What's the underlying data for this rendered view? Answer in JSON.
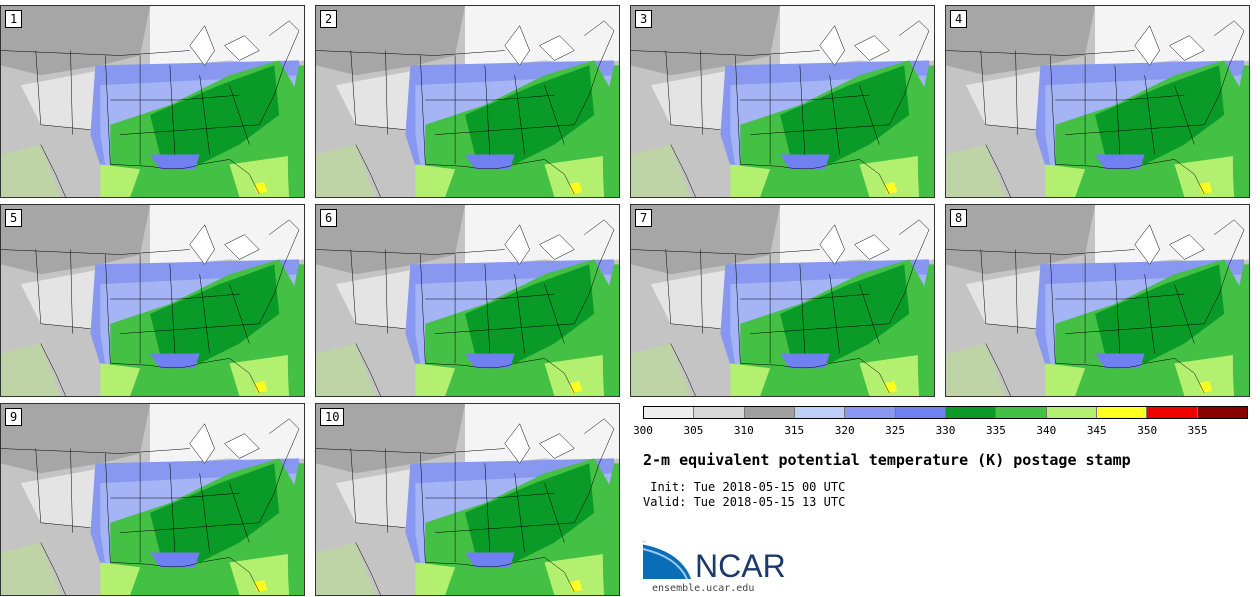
{
  "panels": [
    {
      "label": "1"
    },
    {
      "label": "2"
    },
    {
      "label": "3"
    },
    {
      "label": "4"
    },
    {
      "label": "5"
    },
    {
      "label": "6"
    },
    {
      "label": "7"
    },
    {
      "label": "8"
    },
    {
      "label": "9"
    },
    {
      "label": "10"
    }
  ],
  "colorbar": {
    "colors": [
      "#eeeeee",
      "#d8d8d8",
      "#a0a0a0",
      "#c0cff8",
      "#8898f0",
      "#7080f0",
      "#0a9a28",
      "#44c044",
      "#b4f070",
      "#ffff20",
      "#ee0000",
      "#880000"
    ],
    "ticks": [
      "300",
      "305",
      "310",
      "315",
      "320",
      "325",
      "330",
      "335",
      "340",
      "345",
      "350",
      "355"
    ]
  },
  "title": "2-m equivalent potential temperature (K) postage stamp",
  "init": " Init: Tue 2018-05-15 00 UTC",
  "valid": "Valid: Tue 2018-05-15 13 UTC",
  "logo": {
    "text": "NCAR",
    "site": "ensemble.ucar.edu",
    "colors": {
      "blue": "#0a6db8",
      "text": "#1b3a6b"
    }
  }
}
